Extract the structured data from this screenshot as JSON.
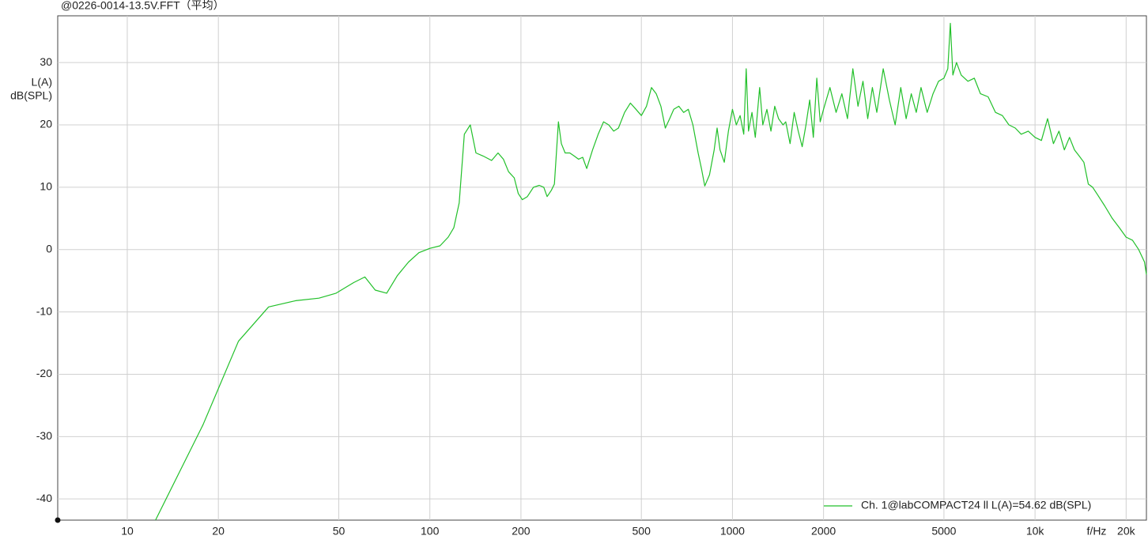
{
  "chart_data": {
    "type": "line",
    "title": "@0226-0014-13.5V.FFT（平均）",
    "xlabel": "f/Hz",
    "ylabel": [
      "L(A)",
      "dB(SPL)"
    ],
    "xscale": "log",
    "grid": true,
    "legend": "lower right",
    "xlim": [
      5.89,
      23340
    ],
    "ylim": [
      -43.4,
      37.5
    ],
    "xticks": [
      10,
      20,
      50,
      100,
      200,
      500,
      1000,
      2000,
      5000,
      {
        "value": 10000,
        "label": "10k"
      },
      {
        "value": 20000,
        "label": "20k"
      }
    ],
    "yticks": [
      -40,
      -30,
      -20,
      -10,
      0,
      10,
      20,
      30
    ],
    "x": [
      12.4,
      17.8,
      23.3,
      29.3,
      36,
      43,
      49,
      56,
      61,
      66,
      72,
      78,
      85,
      92,
      100,
      108,
      115,
      120,
      125,
      130,
      136,
      142,
      150,
      160,
      168,
      175,
      182,
      190,
      196,
      202,
      210,
      220,
      230,
      238,
      244,
      252,
      258,
      266,
      272,
      280,
      290,
      300,
      310,
      320,
      330,
      345,
      360,
      375,
      390,
      405,
      420,
      440,
      460,
      480,
      500,
      520,
      540,
      560,
      580,
      600,
      620,
      640,
      665,
      690,
      715,
      740,
      770,
      790,
      810,
      840,
      870,
      890,
      910,
      940,
      970,
      1000,
      1030,
      1060,
      1090,
      1110,
      1130,
      1160,
      1190,
      1230,
      1260,
      1300,
      1340,
      1380,
      1420,
      1470,
      1500,
      1550,
      1600,
      1650,
      1700,
      1750,
      1800,
      1850,
      1900,
      1950,
      2000,
      2100,
      2200,
      2300,
      2400,
      2500,
      2600,
      2700,
      2800,
      2900,
      3000,
      3150,
      3300,
      3450,
      3600,
      3750,
      3900,
      4050,
      4200,
      4400,
      4600,
      4800,
      5000,
      5150,
      5250,
      5350,
      5500,
      5700,
      6000,
      6300,
      6600,
      7000,
      7400,
      7800,
      8200,
      8600,
      9000,
      9500,
      10000,
      10500,
      11000,
      11500,
      12000,
      12500,
      13000,
      13500,
      14000,
      14500,
      15000,
      15500,
      16000,
      17000,
      18000,
      19000,
      20000,
      21000,
      22000,
      23000,
      23340
    ],
    "series": [
      {
        "name": "Ch. 1@labCOMPACT24 ll L(A)=54.62 dB(SPL)",
        "color": "#22c02a",
        "values": [
          -43.4,
          -28.1,
          -14.7,
          -9.2,
          -8.2,
          -7.8,
          -7,
          -5.3,
          -4.4,
          -6.5,
          -7,
          -4.2,
          -2,
          -0.5,
          0.2,
          0.6,
          2,
          3.5,
          7.5,
          18.5,
          20,
          15.5,
          15,
          14.3,
          15.5,
          14.5,
          12.5,
          11.5,
          9,
          8,
          8.5,
          10,
          10.3,
          10,
          8.5,
          9.5,
          10.5,
          20.5,
          17,
          15.5,
          15.5,
          15,
          14.5,
          14.8,
          13,
          16,
          18.5,
          20.5,
          20,
          19,
          19.5,
          22,
          23.5,
          22.5,
          21.5,
          23,
          26,
          25,
          23,
          19.5,
          21,
          22.5,
          23,
          22,
          22.5,
          20,
          15.5,
          13,
          10.2,
          12,
          16,
          19.5,
          16,
          14,
          19,
          22.5,
          20,
          21.5,
          18.5,
          29,
          19,
          22,
          18,
          26,
          20,
          22.5,
          19,
          23,
          21,
          20,
          20.5,
          17,
          22,
          19,
          16.5,
          20,
          24,
          18,
          27.5,
          20.5,
          22.5,
          26,
          22,
          25,
          21,
          29,
          23,
          27,
          21,
          26,
          22,
          29,
          24,
          20,
          26,
          21,
          25,
          22,
          26,
          22,
          25,
          27,
          27.5,
          29,
          36.3,
          28,
          30,
          28,
          27,
          27.5,
          25,
          24.5,
          22,
          21.5,
          20,
          19.5,
          18.5,
          19,
          18,
          17.5,
          21,
          17,
          19,
          16,
          18,
          16,
          15,
          14,
          10.5,
          10,
          9,
          7,
          5,
          3.5,
          2,
          1.5,
          0,
          -2,
          -4
        ]
      }
    ]
  }
}
